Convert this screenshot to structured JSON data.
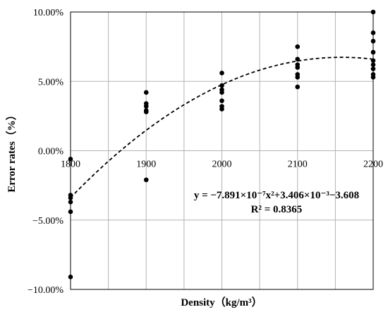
{
  "chart_data": {
    "type": "scatter",
    "title": "",
    "xlabel": "Density（kg/m³）",
    "ylabel": "Error rates（%）",
    "xlim": [
      1800,
      2200
    ],
    "ylim": [
      -10,
      10
    ],
    "x_ticks": [
      1800,
      1900,
      2000,
      2100,
      2200
    ],
    "x_tick_labels": [
      "1800",
      "1900",
      "2000",
      "2100",
      "2200"
    ],
    "y_ticks": [
      10,
      5,
      0,
      -5,
      -10
    ],
    "y_tick_labels": [
      "10.00%",
      "5.00%",
      "0.00%",
      "−5.00%",
      "−10.00%"
    ],
    "grid": true,
    "points": [
      {
        "x": 1800,
        "y": -0.6
      },
      {
        "x": 1800,
        "y": -3.2
      },
      {
        "x": 1800,
        "y": -3.4
      },
      {
        "x": 1800,
        "y": -3.7
      },
      {
        "x": 1800,
        "y": -4.4
      },
      {
        "x": 1800,
        "y": -9.1
      },
      {
        "x": 1900,
        "y": 4.2
      },
      {
        "x": 1900,
        "y": 3.4
      },
      {
        "x": 1900,
        "y": 3.2
      },
      {
        "x": 1900,
        "y": 2.9
      },
      {
        "x": 1900,
        "y": 2.8
      },
      {
        "x": 1900,
        "y": -2.1
      },
      {
        "x": 2000,
        "y": 5.6
      },
      {
        "x": 2000,
        "y": 4.7
      },
      {
        "x": 2000,
        "y": 4.4
      },
      {
        "x": 2000,
        "y": 4.2
      },
      {
        "x": 2000,
        "y": 3.6
      },
      {
        "x": 2000,
        "y": 3.2
      },
      {
        "x": 2000,
        "y": 3.0
      },
      {
        "x": 2100,
        "y": 7.5
      },
      {
        "x": 2100,
        "y": 6.6
      },
      {
        "x": 2100,
        "y": 6.2
      },
      {
        "x": 2100,
        "y": 6.0
      },
      {
        "x": 2100,
        "y": 5.5
      },
      {
        "x": 2100,
        "y": 5.3
      },
      {
        "x": 2100,
        "y": 4.6
      },
      {
        "x": 2200,
        "y": 10.0
      },
      {
        "x": 2200,
        "y": 8.5
      },
      {
        "x": 2200,
        "y": 7.9
      },
      {
        "x": 2200,
        "y": 7.1
      },
      {
        "x": 2200,
        "y": 6.5
      },
      {
        "x": 2200,
        "y": 6.2
      },
      {
        "x": 2200,
        "y": 5.9
      },
      {
        "x": 2200,
        "y": 5.5
      },
      {
        "x": 2200,
        "y": 5.3
      }
    ],
    "fit": {
      "coefficients": {
        "a": -7.891e-07,
        "b": 0.003406,
        "c": -3.608
      },
      "style": "dashed"
    },
    "annotation": {
      "equation": "y = −7.891×10⁻⁷x²+3.406×10⁻³−3.608",
      "r_squared": "R² = 0.8365"
    },
    "colors": {
      "points": "#000000",
      "grid": "#b3b3b3",
      "fit": "#000000"
    }
  }
}
